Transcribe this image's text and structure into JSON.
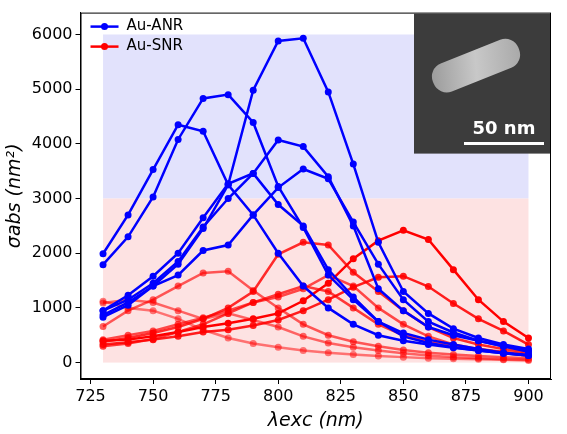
{
  "chart_data": {
    "type": "line",
    "x_label": "λexc (nm)",
    "y_label": "σabs (nm²)",
    "x": [
      730,
      740,
      750,
      760,
      770,
      780,
      790,
      800,
      810,
      820,
      830,
      840,
      850,
      860,
      870,
      880,
      890,
      900
    ],
    "series": [
      {
        "name": "Au-ANR",
        "color": "#0000ff",
        "values": [
          830,
          1050,
          1400,
          1800,
          2450,
          3250,
          4980,
          5880,
          5930,
          4950,
          3630,
          2200,
          1300,
          900,
          620,
          450,
          330,
          250
        ]
      },
      {
        "name": "Au-ANR",
        "color": "#0000ff",
        "values": [
          1790,
          2300,
          3030,
          4080,
          4830,
          4900,
          4390,
          3220,
          2470,
          1600,
          1150,
          750,
          540,
          420,
          330,
          250,
          180,
          140
        ]
      },
      {
        "name": "Au-ANR",
        "color": "#0000ff",
        "values": [
          1990,
          2700,
          3530,
          4350,
          4230,
          3250,
          2700,
          2000,
          1400,
          1000,
          700,
          500,
          400,
          330,
          270,
          220,
          170,
          130
        ]
      },
      {
        "name": "Au-ANR",
        "color": "#0000ff",
        "values": [
          950,
          1150,
          1450,
          1850,
          2480,
          3000,
          3460,
          4070,
          3950,
          3400,
          2500,
          1350,
          950,
          650,
          500,
          400,
          300,
          220
        ]
      },
      {
        "name": "Au-ANR",
        "color": "#0000ff",
        "values": [
          870,
          1100,
          1400,
          1600,
          2050,
          2150,
          2700,
          3200,
          3540,
          3360,
          2570,
          1800,
          1150,
          750,
          550,
          400,
          300,
          200
        ]
      },
      {
        "name": "Au-ANR",
        "color": "#0000ff",
        "values": [
          950,
          1230,
          1580,
          2000,
          2650,
          3270,
          3460,
          2890,
          2500,
          1700,
          1200,
          750,
          480,
          360,
          280,
          220,
          170,
          130
        ]
      },
      {
        "name": "Au-SNR",
        "color": "#ff0000",
        "values": [
          400,
          420,
          480,
          560,
          650,
          720,
          800,
          900,
          1130,
          1450,
          1900,
          2230,
          2420,
          2250,
          1700,
          1150,
          750,
          450
        ]
      },
      {
        "name": "Au-SNR",
        "color": "#ff0000e0",
        "values": [
          330,
          370,
          420,
          480,
          560,
          600,
          680,
          780,
          950,
          1150,
          1380,
          1560,
          1580,
          1390,
          1080,
          800,
          580,
          330
        ]
      },
      {
        "name": "Au-SNR",
        "color": "#ff0000d0",
        "values": [
          380,
          450,
          540,
          650,
          800,
          1000,
          1300,
          1980,
          2200,
          2150,
          1650,
          1300,
          950,
          650,
          450,
          330,
          250,
          180
        ]
      },
      {
        "name": "Au-SNR",
        "color": "#ff0000c0",
        "values": [
          300,
          350,
          430,
          560,
          700,
          900,
          1100,
          1250,
          1400,
          1300,
          1000,
          700,
          500,
          380,
          300,
          250,
          200,
          150
        ]
      },
      {
        "name": "Au-SNR",
        "color": "#ff0000b0",
        "values": [
          420,
          500,
          580,
          700,
          820,
          950,
          1100,
          1200,
          1350,
          1600,
          1400,
          1000,
          700,
          480,
          330,
          250,
          180,
          120
        ]
      },
      {
        "name": "Au-SNR",
        "color": "#ff0000a0",
        "values": [
          660,
          950,
          1150,
          1400,
          1640,
          1670,
          1320,
          1000,
          700,
          500,
          380,
          300,
          230,
          180,
          150,
          120,
          100,
          80
        ]
      },
      {
        "name": "Au-SNR",
        "color": "#ff000090",
        "values": [
          1090,
          1150,
          1100,
          950,
          800,
          900,
          780,
          650,
          480,
          360,
          280,
          220,
          170,
          130,
          100,
          80,
          60,
          50
        ]
      },
      {
        "name": "Au-SNR",
        "color": "#ff000080",
        "values": [
          1120,
          1000,
          950,
          800,
          600,
          450,
          350,
          280,
          220,
          180,
          150,
          120,
          100,
          80,
          70,
          60,
          50,
          40
        ]
      }
    ],
    "xlim": [
      721,
      909
    ],
    "xticks": [
      725,
      750,
      775,
      800,
      825,
      850,
      875,
      900
    ],
    "ylim": [
      -300,
      6400
    ],
    "yticks": [
      0,
      1000,
      2000,
      3000,
      4000,
      5000,
      6000
    ],
    "grid": false,
    "legend": "upper left",
    "marker": "circle",
    "bands": [
      {
        "x": [
          730,
          900
        ],
        "y": [
          3000,
          6000
        ],
        "color": "#e2e2fc"
      },
      {
        "x": [
          730,
          900
        ],
        "y": [
          0,
          3000
        ],
        "color": "#fde2e2"
      }
    ],
    "inset_label": "50 nm"
  }
}
